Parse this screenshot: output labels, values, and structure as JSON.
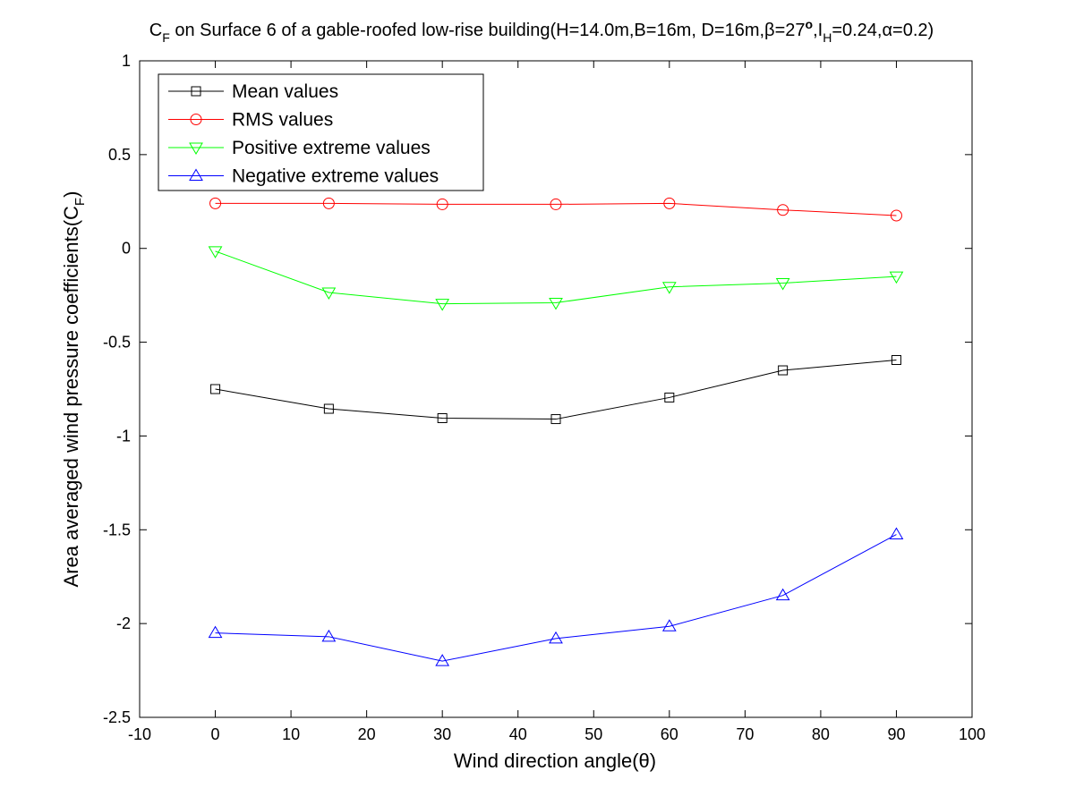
{
  "chart_data": {
    "type": "line",
    "title": {
      "main": "C",
      "sub": "F",
      "rest1": " on Surface 6 of a gable-roofed low-rise building(H=14.0m,B=16m, D=16m,",
      "beta": "β",
      "rest2": "=27",
      "sup": "o",
      "rest3": ",I",
      "sub2": "H",
      "rest4": "=0.24,",
      "alpha": "α",
      "rest5": "=0.2)"
    },
    "xlabel": "Wind direction angle(θ)",
    "ylabel": {
      "main": "Area averaged wind pressure coefficients(C",
      "sub": "F",
      "end": ")"
    },
    "xlim": [
      -10,
      100
    ],
    "ylim": [
      -2.5,
      1
    ],
    "xticks": [
      -10,
      0,
      10,
      20,
      30,
      40,
      50,
      60,
      70,
      80,
      90,
      100
    ],
    "yticks": [
      1,
      0.5,
      0,
      -0.5,
      -1,
      -1.5,
      -2,
      -2.5
    ],
    "grid": false,
    "legend_position": "top-left",
    "x": [
      0,
      15,
      30,
      45,
      60,
      75,
      90
    ],
    "series": [
      {
        "name": "Mean values",
        "color": "#000000",
        "marker": "square",
        "values": [
          -0.75,
          -0.855,
          -0.905,
          -0.91,
          -0.795,
          -0.65,
          -0.595
        ]
      },
      {
        "name": "RMS values",
        "color": "#ff0000",
        "marker": "circle",
        "values": [
          0.24,
          0.24,
          0.235,
          0.235,
          0.24,
          0.205,
          0.175
        ]
      },
      {
        "name": "Positive extreme values",
        "color": "#00ff00",
        "marker": "triangle-down",
        "values": [
          -0.015,
          -0.235,
          -0.295,
          -0.29,
          -0.205,
          -0.185,
          -0.15
        ]
      },
      {
        "name": "Negative extreme values",
        "color": "#0000ff",
        "marker": "triangle-up",
        "values": [
          -2.05,
          -2.07,
          -2.2,
          -2.08,
          -2.015,
          -1.85,
          -1.525
        ]
      }
    ]
  }
}
